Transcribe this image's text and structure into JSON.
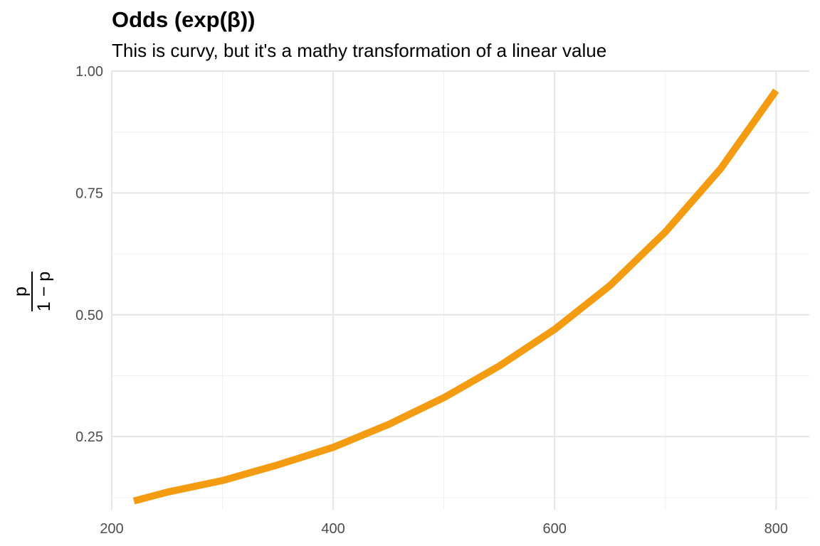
{
  "chart_data": {
    "type": "line",
    "title": "Odds (exp(β))",
    "subtitle": "This is curvy, but it's a mathy transformation of a linear value",
    "ylabel": {
      "numerator": "p",
      "denominator": "1 − p"
    },
    "xlabel": "",
    "xlim": [
      200,
      830
    ],
    "ylim": [
      0.1,
      1.0
    ],
    "x_ticks": [
      200,
      400,
      600,
      800
    ],
    "y_ticks": [
      0.25,
      0.5,
      0.75,
      1.0
    ],
    "y_tick_labels": [
      "0.25",
      "0.50",
      "0.75",
      "1.00"
    ],
    "grid": true,
    "line_color": "#F39C12",
    "series": [
      {
        "x": [
          220,
          250,
          300,
          350,
          400,
          450,
          500,
          550,
          600,
          650,
          700,
          750,
          800
        ],
        "values": [
          0.118,
          0.136,
          0.16,
          0.192,
          0.228,
          0.275,
          0.33,
          0.395,
          0.47,
          0.56,
          0.67,
          0.8,
          0.96
        ]
      }
    ]
  }
}
